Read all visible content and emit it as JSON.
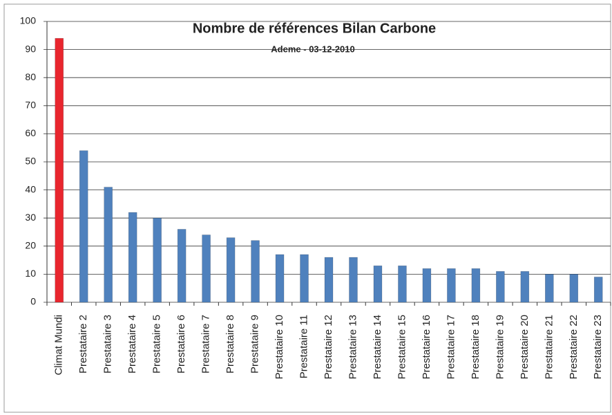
{
  "chart_data": {
    "type": "bar",
    "title": "Nombre de références Bilan Carbone",
    "subtitle": "Ademe - 03-12-2010",
    "categories": [
      "Climat Mundi",
      "Prestataire 2",
      "Prestataire 3",
      "Prestataire 4",
      "Prestataire 5",
      "Prestataire 6",
      "Prestataire 7",
      "Prestataire 8",
      "Prestataire 9",
      "Prestataire 10",
      "Prestataire 11",
      "Prestataire 12",
      "Prestataire 13",
      "Prestataire 14",
      "Prestataire 15",
      "Prestataire 16",
      "Prestataire 17",
      "Prestataire 18",
      "Prestataire 19",
      "Prestataire 20",
      "Prestataire 21",
      "Prestataire 22",
      "Prestataire 23"
    ],
    "values": [
      94,
      54,
      41,
      32,
      30,
      26,
      24,
      23,
      22,
      17,
      17,
      16,
      16,
      13,
      13,
      12,
      12,
      12,
      11,
      11,
      10,
      10,
      9
    ],
    "colors": [
      "#e8262e",
      "#4f81bd",
      "#4f81bd",
      "#4f81bd",
      "#4f81bd",
      "#4f81bd",
      "#4f81bd",
      "#4f81bd",
      "#4f81bd",
      "#4f81bd",
      "#4f81bd",
      "#4f81bd",
      "#4f81bd",
      "#4f81bd",
      "#4f81bd",
      "#4f81bd",
      "#4f81bd",
      "#4f81bd",
      "#4f81bd",
      "#4f81bd",
      "#4f81bd",
      "#4f81bd",
      "#4f81bd"
    ],
    "ylim": [
      0,
      100
    ],
    "yticks": [
      0,
      10,
      20,
      30,
      40,
      50,
      60,
      70,
      80,
      90,
      100
    ],
    "grid": true
  }
}
